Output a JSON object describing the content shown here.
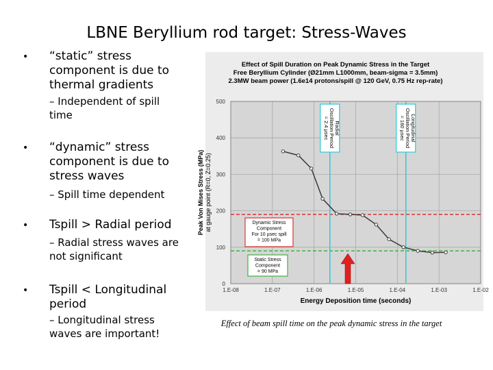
{
  "title": "LBNE Beryllium rod target: Stress-Waves",
  "bullets": [
    {
      "lines": [
        "“static” stress",
        "component is due to",
        "thermal gradients"
      ],
      "sub": [
        "– Independent of spill",
        "time"
      ]
    },
    {
      "lines": [
        "“dynamic” stress",
        "component is due to",
        "stress waves"
      ],
      "sub": [
        "– Spill time dependent"
      ]
    },
    {
      "lines": [
        "Tspill > Radial period"
      ],
      "sub": [
        "– Radial stress waves are",
        "not significant"
      ]
    },
    {
      "lines": [
        "Tspill < Longitudinal",
        "period"
      ],
      "sub": [
        "– Longitudinal stress",
        "waves are important!"
      ]
    }
  ],
  "caption": "Effect of beam spill time on the peak dynamic stress in the target",
  "chart_data": {
    "type": "line",
    "title": [
      "Effect of Spill Duration on Peak Dynamic Stress in the Target",
      "Free Beryllium Cylinder (Ø21mm L1000mm, beam-sigma = 3.5mm)",
      "2.3MW beam power (1.6e14 protons/spill @ 120 GeV, 0.75 Hz rep-rate)"
    ],
    "y_label": [
      "Peak Von Mises Stress (MPa)",
      "at gauge point (R=0, Z=0.25)"
    ],
    "x_label": "Energy Deposition time (seconds)",
    "x_log": true,
    "xlim": [
      1e-08,
      0.01
    ],
    "xticks": [
      {
        "value": 1e-08,
        "label": "1.E-08"
      },
      {
        "value": 1e-07,
        "label": "1.E-07"
      },
      {
        "value": 1e-06,
        "label": "1.E-06"
      },
      {
        "value": 1e-05,
        "label": "1.E-05"
      },
      {
        "value": 0.0001,
        "label": "1.E-04"
      },
      {
        "value": 0.001,
        "label": "1.E-03"
      },
      {
        "value": 0.01,
        "label": "1.E-02"
      }
    ],
    "ylim": [
      0,
      500
    ],
    "yticks": [
      0,
      100,
      200,
      300,
      400,
      500
    ],
    "grid": true,
    "series": [
      {
        "color": "#3a3a3a",
        "x": [
          1.8e-07,
          4.2e-07,
          8.6e-07,
          1.6e-06,
          3.5e-06,
          7.4e-06,
          1.46e-05,
          3.1e-05,
          6.3e-05,
          0.00014,
          0.00031,
          0.00069,
          0.00145
        ],
        "values": [
          363,
          352,
          316,
          233,
          192,
          190,
          188,
          162,
          122,
          100,
          90,
          85,
          86
        ]
      }
    ],
    "reference_lines": [
      {
        "y": 190,
        "color": "#e03030"
      },
      {
        "y": 90,
        "color": "#40b040"
      }
    ],
    "vertical_lines": [
      {
        "x": 2.4e-06,
        "color": "#30c8d8",
        "lines": [
          "Radial",
          "Oscillation Period",
          "= 2.4 µsec"
        ]
      },
      {
        "x": 0.00016,
        "color": "#30c8d8",
        "lines": [
          "Longitudinal",
          "Oscillation Period",
          "= 160 µsec"
        ]
      }
    ],
    "boxes": [
      {
        "color": "#e03030",
        "lines": [
          "Dynamic Stress",
          "Component",
          "For 10 µsec spill",
          "= 100 MPa"
        ]
      },
      {
        "color": "#40b040",
        "lines": [
          "Static Stress",
          "Component",
          "= 90 MPa"
        ]
      }
    ]
  }
}
